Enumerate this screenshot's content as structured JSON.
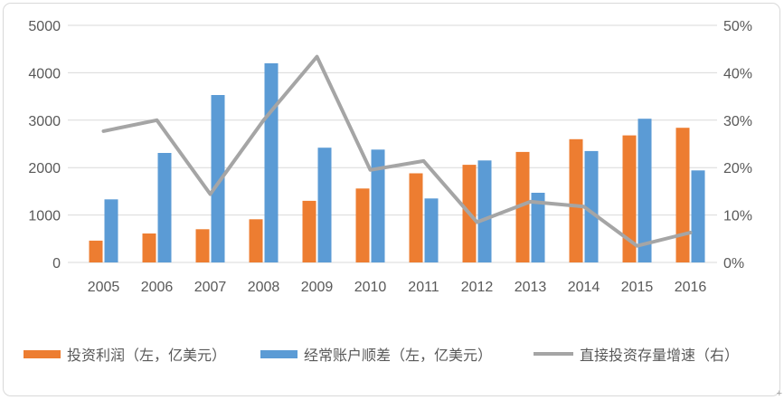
{
  "colors": {
    "bar_orange": "#ED7D31",
    "bar_blue": "#5B9BD5",
    "line_gray": "#A5A5A5",
    "gridline": "#D9D9D9",
    "axis_text": "#595959",
    "frame_border": "#D9D9D9"
  },
  "resize_glyph": "+",
  "chart_data": {
    "type": "combo",
    "subtype": "grouped-bars-with-line",
    "title": "",
    "grid": true,
    "legend_position": "bottom",
    "categories": [
      "2005",
      "2006",
      "2007",
      "2008",
      "2009",
      "2010",
      "2011",
      "2012",
      "2013",
      "2014",
      "2015",
      "2016"
    ],
    "series": [
      {
        "name": "投资利润（左，亿美元）",
        "type": "bar",
        "axis": "left",
        "color": "#ED7D31",
        "values": [
          460,
          610,
          700,
          910,
          1300,
          1560,
          1880,
          2060,
          2330,
          2600,
          2680,
          2840
        ]
      },
      {
        "name": "经常账户顺差（左，亿美元）",
        "type": "bar",
        "axis": "left",
        "color": "#5B9BD5",
        "values": [
          1330,
          2310,
          3530,
          4200,
          2420,
          2380,
          1350,
          2150,
          1470,
          2350,
          3030,
          1940
        ]
      },
      {
        "name": "直接投资存量增速（右）",
        "type": "line",
        "axis": "right",
        "color": "#A5A5A5",
        "values": [
          27.7,
          30,
          14.4,
          30,
          43.4,
          19.5,
          21.4,
          8.5,
          12.8,
          11.8,
          3.5,
          6.3
        ]
      }
    ],
    "left_axis": {
      "min": 0,
      "max": 5000,
      "ticks": [
        0,
        1000,
        2000,
        3000,
        4000,
        5000
      ],
      "tick_labels": [
        "0",
        "1000",
        "2000",
        "3000",
        "4000",
        "5000"
      ]
    },
    "right_axis": {
      "min": 0,
      "max": 50,
      "ticks": [
        0,
        10,
        20,
        30,
        40,
        50
      ],
      "tick_labels": [
        "0%",
        "10%",
        "20%",
        "30%",
        "40%",
        "50%"
      ]
    }
  }
}
